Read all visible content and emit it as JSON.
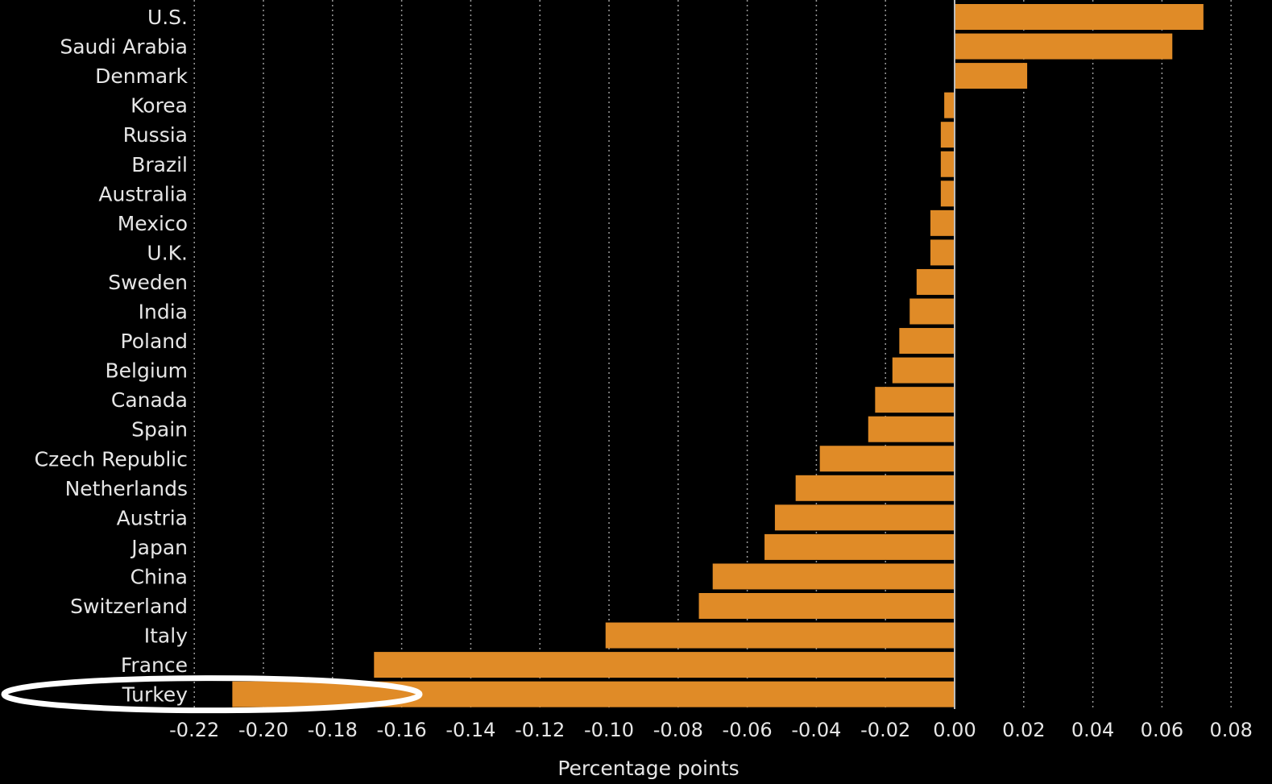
{
  "chart_data": {
    "type": "bar",
    "orientation": "horizontal",
    "categories": [
      "U.S.",
      "Saudi Arabia",
      "Denmark",
      "Korea",
      "Russia",
      "Brazil",
      "Australia",
      "Mexico",
      "U.K.",
      "Sweden",
      "India",
      "Poland",
      "Belgium",
      "Canada",
      "Spain",
      "Czech Republic",
      "Netherlands",
      "Austria",
      "Japan",
      "China",
      "Switzerland",
      "Italy",
      "France",
      "Turkey"
    ],
    "values": [
      0.072,
      0.063,
      0.021,
      -0.003,
      -0.004,
      -0.004,
      -0.004,
      -0.007,
      -0.007,
      -0.011,
      -0.013,
      -0.016,
      -0.018,
      -0.023,
      -0.025,
      -0.039,
      -0.046,
      -0.052,
      -0.055,
      -0.07,
      -0.074,
      -0.101,
      -0.168,
      -0.209
    ],
    "xlabel": "Percentage points",
    "xlim": [
      -0.23,
      0.08
    ],
    "xticks": [
      "-0.22",
      "-0.20",
      "-0.18",
      "-0.16",
      "-0.14",
      "-0.12",
      "-0.10",
      "-0.08",
      "-0.06",
      "-0.04",
      "-0.02",
      "0.00",
      "0.02",
      "0.04",
      "0.06",
      "0.08"
    ],
    "grid": "vertical-dotted",
    "highlight": "Turkey",
    "colors": {
      "bar": "#e08b27",
      "background": "#000000",
      "text": "#e6e6e6",
      "highlight": "#ffffff"
    }
  }
}
